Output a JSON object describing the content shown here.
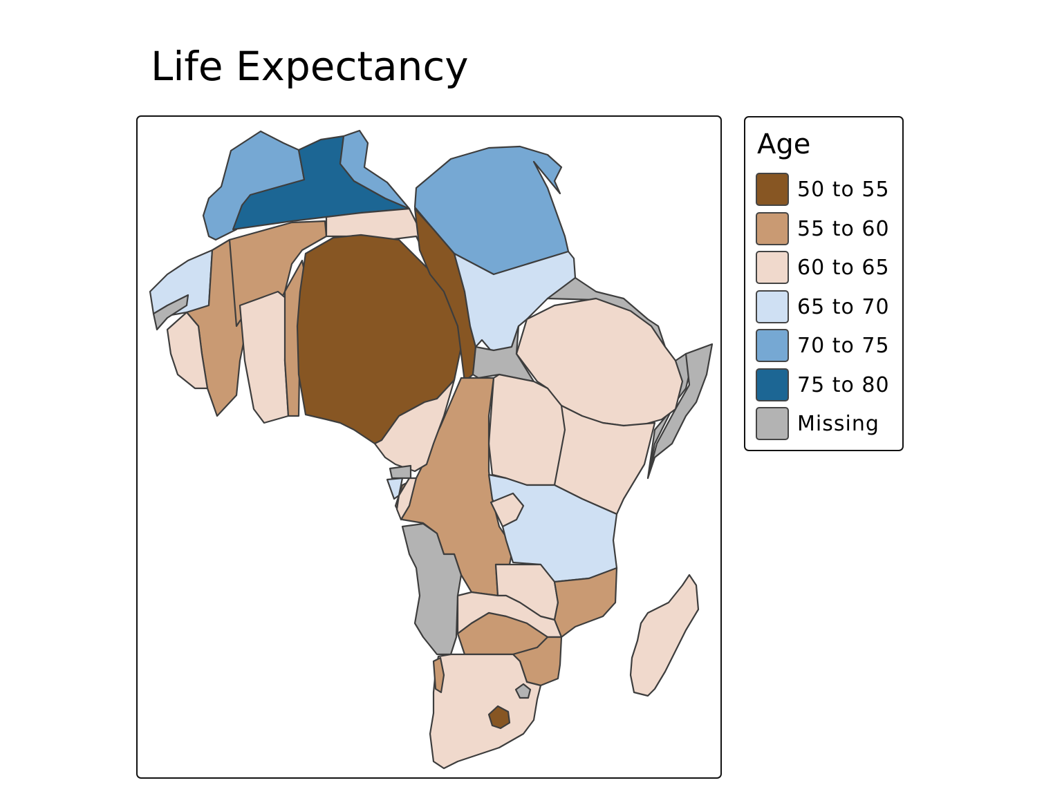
{
  "title": "Life Expectancy",
  "legend": {
    "title": "Age",
    "items": [
      {
        "label": "50 to 55",
        "color": "#875623"
      },
      {
        "label": "55 to 60",
        "color": "#c99a73"
      },
      {
        "label": "60 to 65",
        "color": "#f0d9cc"
      },
      {
        "label": "65 to 70",
        "color": "#cfe0f3"
      },
      {
        "label": "70 to 75",
        "color": "#76a8d3"
      },
      {
        "label": "75 to 80",
        "color": "#1c6694"
      },
      {
        "label": "Missing",
        "color": "#b3b3b3"
      }
    ]
  },
  "map": {
    "type": "cartogram",
    "variable": "life expectancy",
    "region": "Africa"
  }
}
